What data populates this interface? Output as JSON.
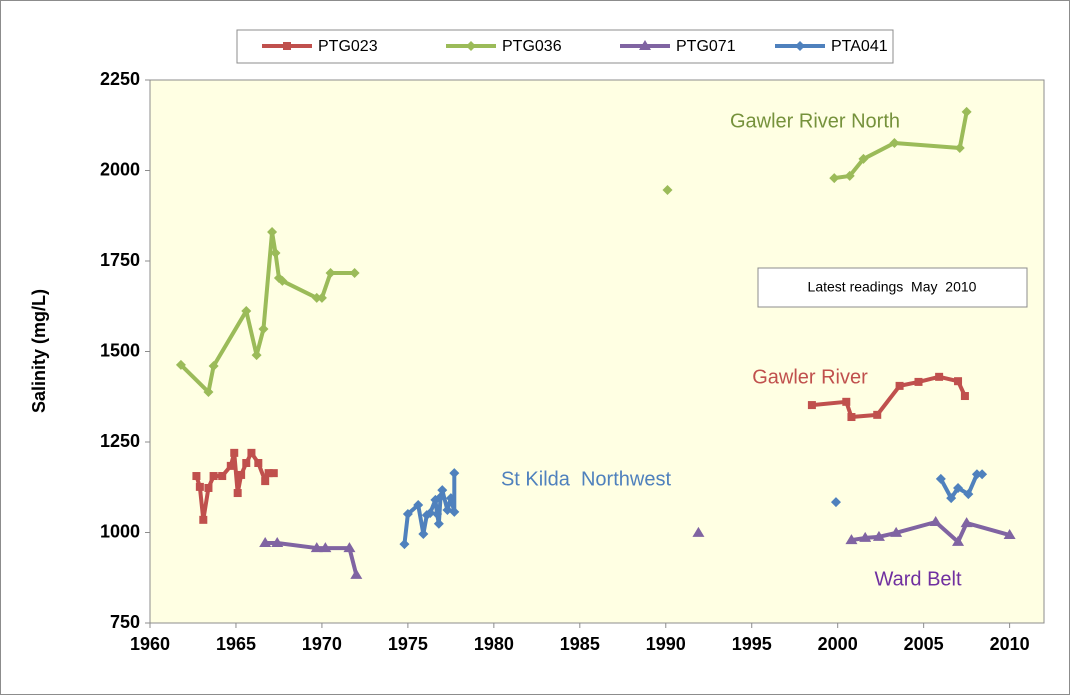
{
  "chart_data": {
    "type": "line",
    "y_label": "Salinity (mg/L)",
    "xlim": [
      1960,
      2012
    ],
    "ylim": [
      750,
      2250
    ],
    "xticks": [
      1960,
      1965,
      1970,
      1975,
      1980,
      1985,
      1990,
      1995,
      2000,
      2005,
      2010
    ],
    "yticks": [
      750,
      1000,
      1250,
      1500,
      1750,
      2000,
      2250
    ],
    "grid": false,
    "legend": "top",
    "series": [
      {
        "name": "PTG023",
        "color": "#c0504d",
        "marker": "square",
        "x": [
          1962.7,
          1962.9,
          1963.1,
          1963.4,
          1963.7,
          1964.2,
          1964.7,
          1964.9,
          1965.1,
          1965.3,
          1965.6,
          1965.9,
          1966.3,
          1966.7,
          1966.9,
          1967.2,
          null,
          1998.5,
          2000.5,
          2000.8,
          2002.3,
          2003.6,
          2004.7,
          2005.9,
          2007.0,
          2007.4
        ],
        "values": [
          1156,
          1126,
          1035,
          1123,
          1156,
          1156,
          1184,
          1220,
          1109,
          1159,
          1192,
          1220,
          1192,
          1142,
          1164,
          1164,
          null,
          1352,
          1361,
          1319,
          1325,
          1405,
          1416,
          1430,
          1418,
          1377
        ]
      },
      {
        "name": "PTG036",
        "color": "#9bbb59",
        "marker": "diamond",
        "x": [
          1961.8,
          1963.4,
          1963.7,
          1965.6,
          1966.2,
          1966.6,
          1967.1,
          1967.3,
          1967.5,
          1967.7,
          1969.7,
          1970.0,
          1970.5,
          1971.9,
          null,
          1990.1,
          null,
          1999.8,
          2000.7,
          2001.5,
          2003.3,
          2007.1,
          2007.5
        ],
        "values": [
          1463,
          1388,
          1460,
          1612,
          1490,
          1562,
          1830,
          1772,
          1703,
          1695,
          1648,
          1648,
          1717,
          1717,
          null,
          1946,
          null,
          1979,
          1985,
          2032,
          2076,
          2062,
          2162
        ]
      },
      {
        "name": "PTG071",
        "color": "#8064a2",
        "marker": "triangle",
        "x": [
          1966.7,
          1967.4,
          1969.7,
          1970.2,
          1971.6,
          1972.0,
          null,
          1991.9,
          null,
          2000.8,
          2001.6,
          2002.4,
          2003.4,
          2005.7,
          2007.0,
          2007.5,
          2010.0
        ],
        "values": [
          971,
          971,
          957,
          957,
          957,
          883,
          null,
          999,
          null,
          979,
          985,
          988,
          999,
          1029,
          974,
          1026,
          993
        ]
      },
      {
        "name": "PTA041",
        "color": "#4f81bd",
        "marker": "diamond",
        "x": [
          1974.8,
          1975.0,
          1975.6,
          1975.9,
          1976.1,
          1976.3,
          1976.6,
          1976.7,
          1976.8,
          1976.9,
          1977.0,
          1977.3,
          1977.5,
          1977.7,
          1977.7,
          null,
          1999.9,
          null,
          2006.0,
          2006.6,
          2007.0,
          2007.6,
          2008.1,
          2008.4
        ],
        "values": [
          968,
          1051,
          1076,
          996,
          1048,
          1054,
          1090,
          1051,
          1024,
          1098,
          1117,
          1062,
          1095,
          1057,
          1164,
          null,
          1084,
          null,
          1148,
          1095,
          1123,
          1106,
          1161,
          1161
        ]
      }
    ],
    "annotations": [
      {
        "text": "Gawler River North",
        "color": "#76923c"
      },
      {
        "text": "Latest readings  May  2010",
        "color": "#000000",
        "boxed": true
      },
      {
        "text": "Gawler River",
        "color": "#c0504d"
      },
      {
        "text": "St Kilda  Northwest",
        "color": "#4f81bd"
      },
      {
        "text": "Ward Belt",
        "color": "#7030a0"
      }
    ]
  }
}
